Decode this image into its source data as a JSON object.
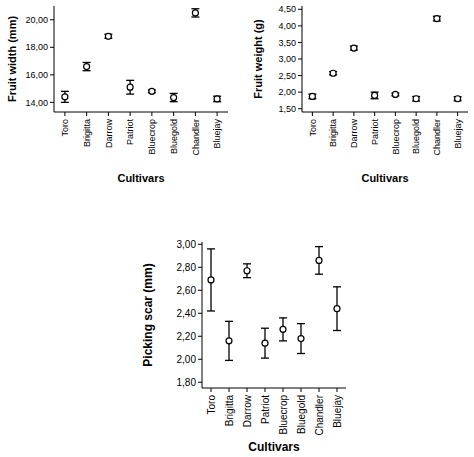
{
  "chart_data": [
    {
      "type": "scatter",
      "marker": "circle",
      "color": "#000000",
      "x_label": "Cultivars",
      "y_label": "Fruit width (mm)",
      "categories": [
        "Toro",
        "Brigitta",
        "Darrow",
        "Patriot",
        "Bluecrop",
        "Bluegold",
        "Chandler",
        "Bluejay"
      ],
      "values": [
        14.4,
        16.6,
        18.8,
        15.1,
        14.8,
        14.35,
        20.5,
        14.25
      ],
      "errors": [
        0.4,
        0.3,
        0.15,
        0.5,
        0.1,
        0.3,
        0.3,
        0.2
      ],
      "ylim": [
        13.3,
        21
      ],
      "yticks": [
        {
          "value": 14,
          "label": "14,00"
        },
        {
          "value": 16,
          "label": "16,00"
        },
        {
          "value": 18,
          "label": "18,00"
        },
        {
          "value": 20,
          "label": "20,00"
        }
      ]
    },
    {
      "type": "scatter",
      "marker": "circle",
      "color": "#000000",
      "x_label": "Cultivars",
      "y_label": "Fruit weight (g)",
      "categories": [
        "Toro",
        "Brigitta",
        "Darrow",
        "Patriot",
        "Bluecrop",
        "Bluegold",
        "Chandler",
        "Bluejay"
      ],
      "values": [
        1.87,
        2.57,
        3.33,
        1.9,
        1.93,
        1.8,
        4.22,
        1.8
      ],
      "errors": [
        0.07,
        0.05,
        0.06,
        0.1,
        0.04,
        0.07,
        0.07,
        0.06
      ],
      "ylim": [
        1.4,
        4.6
      ],
      "yticks": [
        {
          "value": 1.5,
          "label": "1,50"
        },
        {
          "value": 2,
          "label": "2,00"
        },
        {
          "value": 2.5,
          "label": "2,50"
        },
        {
          "value": 3,
          "label": "3,00"
        },
        {
          "value": 3.5,
          "label": "3,50"
        },
        {
          "value": 4,
          "label": "4,00"
        },
        {
          "value": 4.5,
          "label": "4,50"
        }
      ]
    },
    {
      "type": "scatter",
      "marker": "circle",
      "color": "#000000",
      "x_label": "Cultivars",
      "y_label": "Picking scar (mm)",
      "categories": [
        "Toro",
        "Brigitta",
        "Darrow",
        "Patriot",
        "Bluecrop",
        "Bluegold",
        "Chandler",
        "Bluejay"
      ],
      "values": [
        2.69,
        2.16,
        2.77,
        2.14,
        2.26,
        2.18,
        2.86,
        2.44
      ],
      "errors": [
        0.27,
        0.17,
        0.06,
        0.13,
        0.1,
        0.13,
        0.12,
        0.19
      ],
      "ylim": [
        1.75,
        3.02
      ],
      "yticks": [
        {
          "value": 1.8,
          "label": "1,80"
        },
        {
          "value": 2,
          "label": "2,00"
        },
        {
          "value": 2.2,
          "label": "2,20"
        },
        {
          "value": 2.4,
          "label": "2,40"
        },
        {
          "value": 2.6,
          "label": "2,60"
        },
        {
          "value": 2.8,
          "label": "2,80"
        },
        {
          "value": 3,
          "label": "3,00"
        }
      ]
    }
  ]
}
